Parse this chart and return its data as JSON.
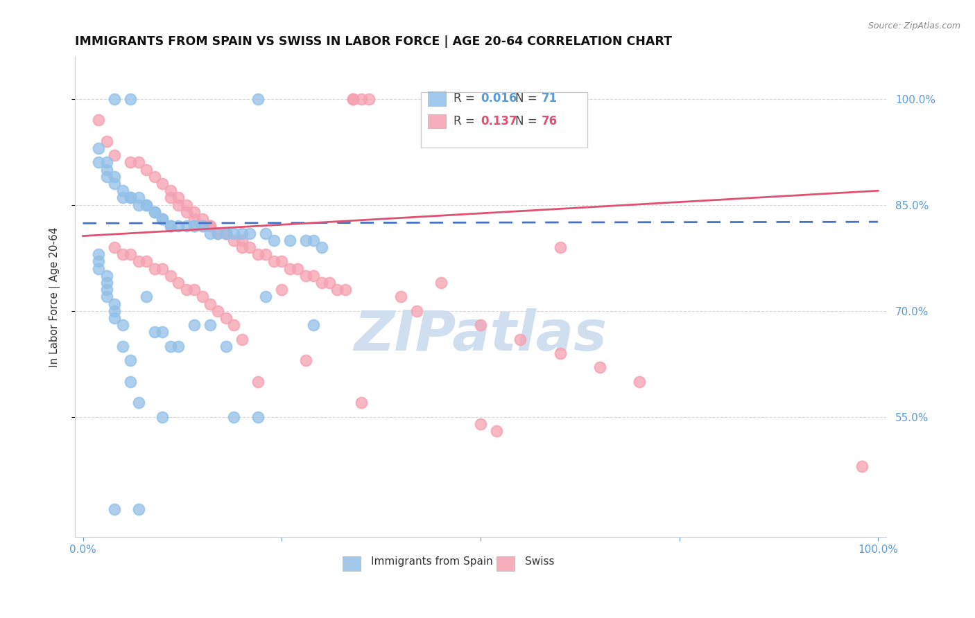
{
  "title": "IMMIGRANTS FROM SPAIN VS SWISS IN LABOR FORCE | AGE 20-64 CORRELATION CHART",
  "source_text": "Source: ZipAtlas.com",
  "ylabel": "In Labor Force | Age 20-64",
  "ytick_values": [
    1.0,
    0.85,
    0.7,
    0.55
  ],
  "xmin": 0.0,
  "xmax": 1.0,
  "ymin": 0.38,
  "ymax": 1.06,
  "legend_label_blue": "Immigrants from Spain",
  "legend_label_pink": "Swiss",
  "R_blue": 0.016,
  "N_blue": 71,
  "R_pink": 0.137,
  "N_pink": 76,
  "blue_color": "#92C0E8",
  "pink_color": "#F5A0B0",
  "blue_line_color": "#4472C4",
  "pink_line_color": "#E05070",
  "axis_label_color": "#5B9BD5",
  "grid_color": "#C8C8C8",
  "watermark_color": "#D0DFF0",
  "blue_trend_start_y": 0.824,
  "blue_trend_end_y": 0.826,
  "pink_trend_start_y": 0.806,
  "pink_trend_end_y": 0.87,
  "blue_scatter_x": [
    0.04,
    0.06,
    0.22,
    0.02,
    0.02,
    0.03,
    0.03,
    0.03,
    0.04,
    0.04,
    0.05,
    0.05,
    0.06,
    0.06,
    0.07,
    0.07,
    0.08,
    0.08,
    0.09,
    0.09,
    0.1,
    0.1,
    0.11,
    0.11,
    0.12,
    0.13,
    0.14,
    0.14,
    0.15,
    0.16,
    0.17,
    0.18,
    0.19,
    0.2,
    0.21,
    0.23,
    0.24,
    0.26,
    0.28,
    0.29,
    0.3,
    0.02,
    0.02,
    0.02,
    0.03,
    0.03,
    0.03,
    0.03,
    0.04,
    0.04,
    0.04,
    0.05,
    0.05,
    0.06,
    0.06,
    0.07,
    0.08,
    0.09,
    0.1,
    0.11,
    0.12,
    0.14,
    0.16,
    0.18,
    0.19,
    0.22,
    0.23,
    0.29,
    0.04,
    0.07,
    0.1
  ],
  "blue_scatter_y": [
    1.0,
    1.0,
    1.0,
    0.93,
    0.91,
    0.91,
    0.9,
    0.89,
    0.89,
    0.88,
    0.87,
    0.86,
    0.86,
    0.86,
    0.86,
    0.85,
    0.85,
    0.85,
    0.84,
    0.84,
    0.83,
    0.83,
    0.82,
    0.82,
    0.82,
    0.82,
    0.82,
    0.82,
    0.82,
    0.81,
    0.81,
    0.81,
    0.81,
    0.81,
    0.81,
    0.81,
    0.8,
    0.8,
    0.8,
    0.8,
    0.79,
    0.78,
    0.77,
    0.76,
    0.75,
    0.74,
    0.73,
    0.72,
    0.71,
    0.7,
    0.69,
    0.68,
    0.65,
    0.63,
    0.6,
    0.57,
    0.72,
    0.67,
    0.67,
    0.65,
    0.65,
    0.68,
    0.68,
    0.65,
    0.55,
    0.55,
    0.72,
    0.68,
    0.42,
    0.42,
    0.55
  ],
  "pink_scatter_x": [
    0.34,
    0.34,
    0.35,
    0.36,
    0.02,
    0.03,
    0.04,
    0.06,
    0.07,
    0.08,
    0.09,
    0.1,
    0.11,
    0.11,
    0.12,
    0.12,
    0.13,
    0.13,
    0.14,
    0.14,
    0.15,
    0.15,
    0.16,
    0.16,
    0.17,
    0.18,
    0.18,
    0.19,
    0.2,
    0.2,
    0.21,
    0.22,
    0.23,
    0.24,
    0.25,
    0.26,
    0.27,
    0.28,
    0.29,
    0.3,
    0.31,
    0.32,
    0.33,
    0.4,
    0.42,
    0.5,
    0.55,
    0.6,
    0.65,
    0.7,
    0.04,
    0.05,
    0.06,
    0.07,
    0.08,
    0.09,
    0.1,
    0.11,
    0.12,
    0.13,
    0.14,
    0.15,
    0.16,
    0.17,
    0.18,
    0.19,
    0.2,
    0.22,
    0.25,
    0.28,
    0.35,
    0.5,
    0.98,
    0.45,
    0.52,
    0.6
  ],
  "pink_scatter_y": [
    1.0,
    1.0,
    1.0,
    1.0,
    0.97,
    0.94,
    0.92,
    0.91,
    0.91,
    0.9,
    0.89,
    0.88,
    0.87,
    0.86,
    0.86,
    0.85,
    0.85,
    0.84,
    0.84,
    0.83,
    0.83,
    0.82,
    0.82,
    0.82,
    0.81,
    0.81,
    0.81,
    0.8,
    0.8,
    0.79,
    0.79,
    0.78,
    0.78,
    0.77,
    0.77,
    0.76,
    0.76,
    0.75,
    0.75,
    0.74,
    0.74,
    0.73,
    0.73,
    0.72,
    0.7,
    0.68,
    0.66,
    0.64,
    0.62,
    0.6,
    0.79,
    0.78,
    0.78,
    0.77,
    0.77,
    0.76,
    0.76,
    0.75,
    0.74,
    0.73,
    0.73,
    0.72,
    0.71,
    0.7,
    0.69,
    0.68,
    0.66,
    0.6,
    0.73,
    0.63,
    0.57,
    0.54,
    0.48,
    0.74,
    0.53,
    0.79
  ]
}
